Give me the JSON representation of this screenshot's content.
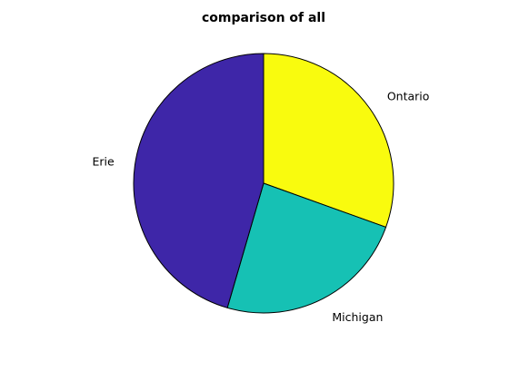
{
  "chart_data": {
    "type": "pie",
    "title": "comparison of all",
    "slices": [
      {
        "label": "Ontario",
        "value": 30.5,
        "color": "#f9fb0e"
      },
      {
        "label": "Michigan",
        "value": 24.0,
        "color": "#16c1b4"
      },
      {
        "label": "Erie",
        "value": 45.5,
        "color": "#3e26a8"
      }
    ],
    "start": "top",
    "direction": "clockwise",
    "legend": "none"
  }
}
